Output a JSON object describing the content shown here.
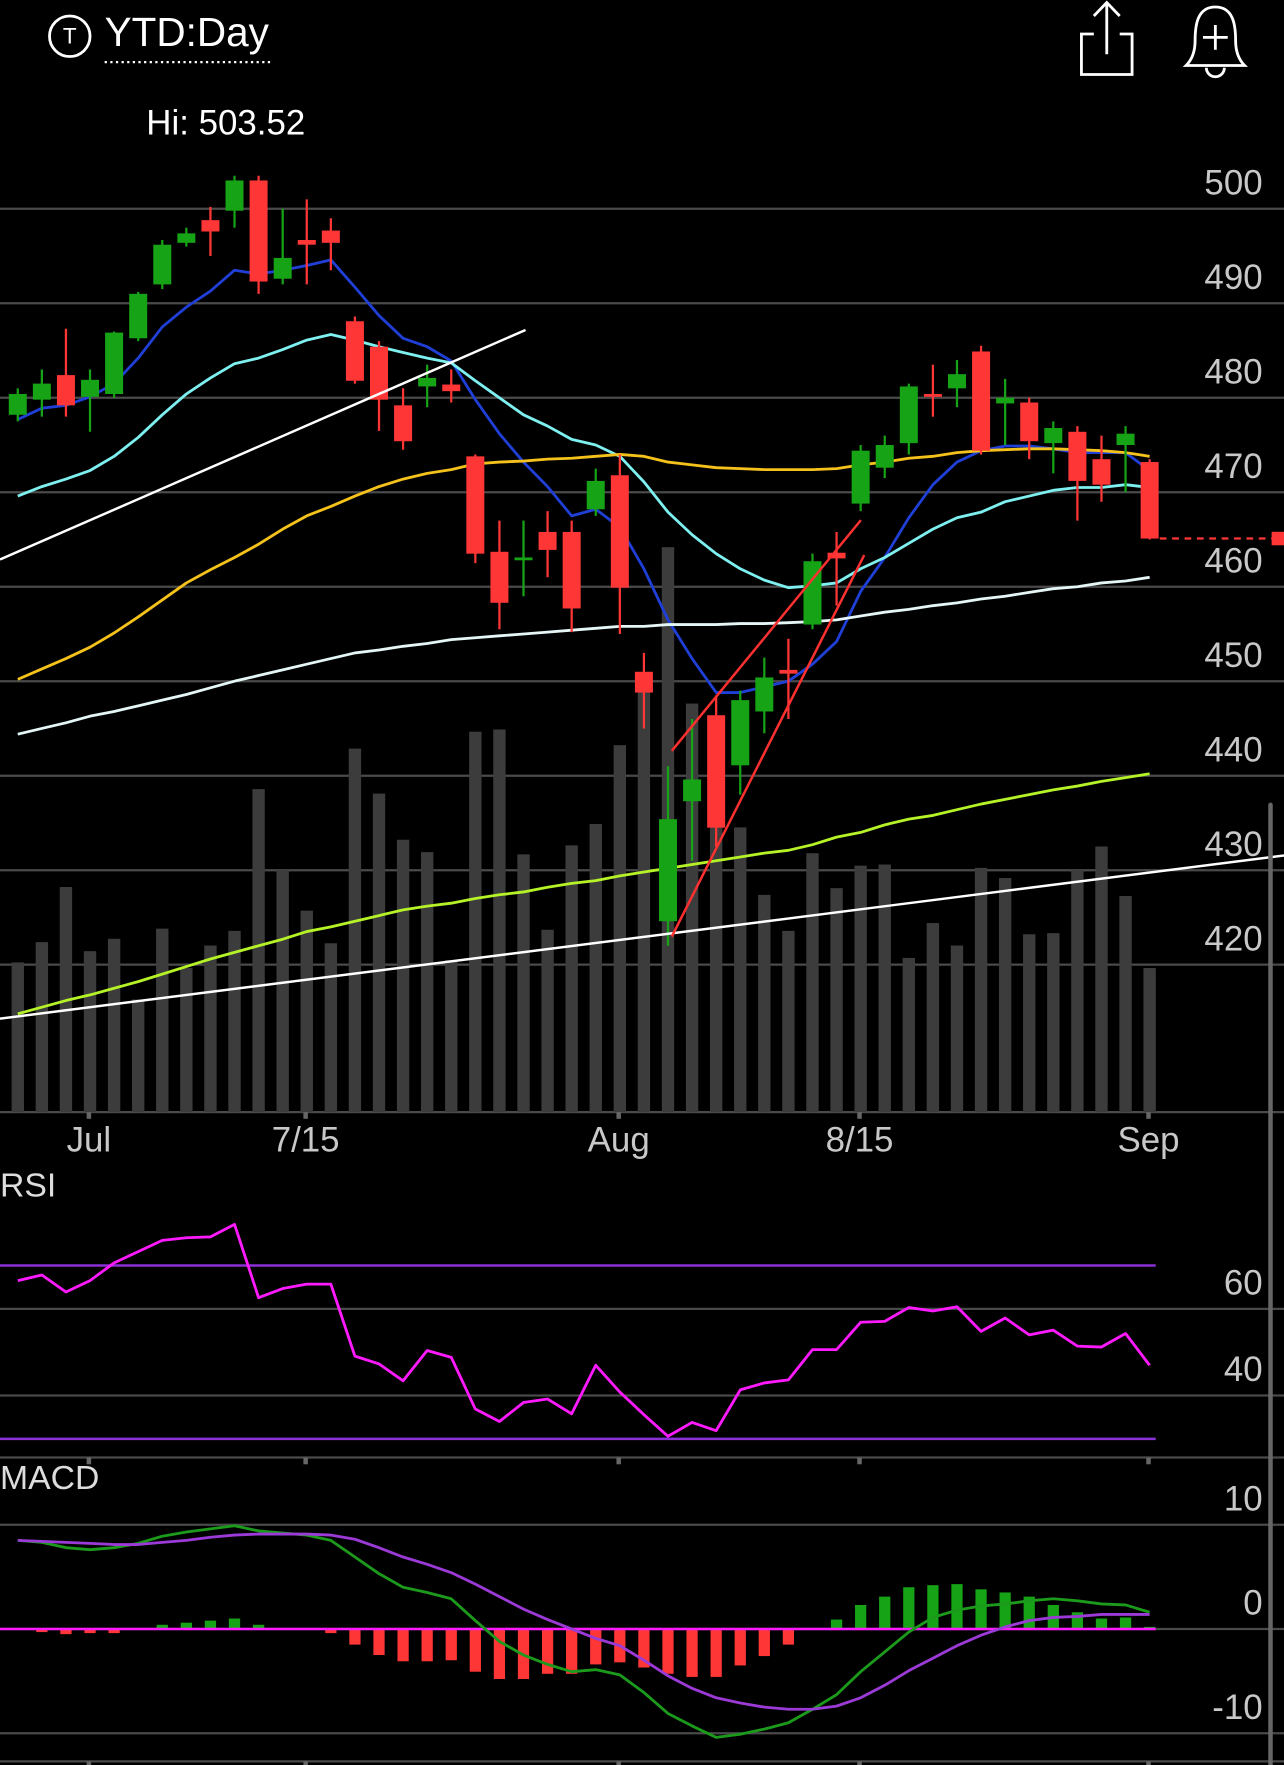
{
  "header": {
    "icon_letter": "T",
    "period": "YTD:Day"
  },
  "chart_data": [
    {
      "type": "candlestick",
      "annotation": "Hi: 503.52",
      "categories": [
        null,
        null,
        null,
        "Jul",
        null,
        null,
        null,
        null,
        null,
        null,
        null,
        null,
        "7/15",
        null,
        null,
        null,
        null,
        null,
        null,
        null,
        null,
        null,
        null,
        null,
        null,
        "Aug",
        null,
        null,
        null,
        null,
        null,
        null,
        null,
        null,
        null,
        "8/15",
        null,
        null,
        null,
        null,
        null,
        null,
        null,
        null,
        null,
        null,
        null,
        "Sep"
      ],
      "open": [
        478.2,
        479.8,
        482.4,
        480.1,
        480.4,
        486.3,
        492,
        496.4,
        498.8,
        499.8,
        503,
        492.6,
        496.7,
        497.7,
        488.1,
        485.4,
        479.2,
        481.2,
        481.4,
        473.8,
        463.7,
        462.8,
        465.8,
        465.8,
        468.2,
        471.8,
        451,
        424.6,
        437.3,
        446.4,
        441.1,
        446.8,
        451.2,
        456,
        463.6,
        468.8,
        472.6,
        475.2,
        480.4,
        481,
        484.9,
        479.4,
        479.5,
        475.2,
        476.4,
        473.5,
        475,
        473.2
      ],
      "high": [
        481,
        483,
        487.3,
        483,
        487,
        491.2,
        496.7,
        498,
        500.2,
        503.5,
        503.5,
        500,
        501,
        499,
        488.6,
        486,
        481,
        483.5,
        483,
        474,
        467,
        467,
        468,
        467,
        472.5,
        474,
        453,
        441,
        446,
        448.5,
        449,
        452.5,
        454.5,
        463.5,
        465.8,
        475,
        476,
        481.5,
        483.5,
        484,
        485.5,
        482,
        480,
        477.5,
        477,
        476,
        477,
        473.5
      ],
      "low": [
        477.5,
        478,
        478,
        476.4,
        480,
        486,
        491.5,
        496,
        495,
        498,
        491,
        492,
        492,
        493.5,
        481.5,
        476.5,
        474.5,
        479,
        479.5,
        462.5,
        455.5,
        459,
        461,
        455.2,
        467.5,
        455,
        445,
        422,
        431,
        432.5,
        438,
        444.5,
        446,
        455.5,
        458,
        468,
        471.5,
        474,
        478,
        479,
        474,
        475,
        473.5,
        472,
        467,
        469,
        470,
        465
      ],
      "close": [
        480.4,
        481.5,
        479.2,
        481.9,
        486.9,
        491,
        496.2,
        497.4,
        497.6,
        503,
        492.3,
        494.8,
        496.2,
        496.4,
        481.8,
        479.8,
        475.4,
        482.1,
        480.7,
        463.5,
        458.3,
        463.1,
        463.9,
        457.7,
        471.2,
        459.9,
        448.8,
        435.4,
        439.6,
        434.5,
        448,
        450.4,
        450.8,
        462.7,
        463,
        474.4,
        475,
        481.2,
        480.1,
        482.5,
        474.4,
        480,
        475.4,
        476.8,
        471.2,
        470.8,
        476.2,
        465.1
      ],
      "volume": [
        133,
        151,
        200,
        143,
        154,
        100,
        163,
        128,
        148,
        161,
        287,
        215,
        179,
        150,
        323,
        283,
        242,
        231,
        135,
        338,
        340,
        229,
        162,
        237,
        256,
        326,
        388,
        502,
        363,
        343,
        253,
        193,
        161,
        230,
        199,
        219,
        220,
        137,
        168,
        148,
        217,
        208,
        158,
        159,
        215,
        236,
        192,
        128
      ],
      "volume_color": "#3c3c3c",
      "up_color": "#16a316",
      "down_color": "#ff3636",
      "series": [
        {
          "color": "#1f3fd6",
          "values": [
            477.7,
            478.9,
            479.2,
            480.1,
            481.5,
            484.2,
            487.5,
            489.6,
            491.3,
            493.5,
            493.1,
            493.5,
            494.0,
            494.6,
            491.7,
            488.7,
            486.3,
            485.4,
            483.9,
            479.8,
            476.2,
            473.2,
            470.6,
            467.5,
            468.2,
            466.3,
            461.9,
            456.5,
            452.4,
            448.8,
            448.8,
            449.4,
            450.0,
            451.8,
            454.2,
            459.5,
            463.1,
            467.3,
            470.8,
            473.2,
            474.4,
            474.9,
            474.9,
            474.6,
            474.2,
            474.2,
            474.2,
            472.3
          ]
        },
        {
          "color": "#7ff0f0",
          "values": [
            469.6,
            470.6,
            471.4,
            472.3,
            473.8,
            475.8,
            478.2,
            480.4,
            482.1,
            483.6,
            484.2,
            485.1,
            486.1,
            486.7,
            486.1,
            485.4,
            484.8,
            484.2,
            483.7,
            481.8,
            480.0,
            478.2,
            477.0,
            475.6,
            475.0,
            473.8,
            471.1,
            467.9,
            465.5,
            463.5,
            461.9,
            460.7,
            459.9,
            460.1,
            460.4,
            461.9,
            463.1,
            464.6,
            466.1,
            467.3,
            467.9,
            469.0,
            469.6,
            470.2,
            470.5,
            470.5,
            470.8,
            470.5
          ]
        },
        {
          "color": "#f5c21b",
          "values": [
            450.2,
            451.3,
            452.4,
            453.6,
            455.1,
            456.8,
            458.6,
            460.4,
            461.8,
            463.1,
            464.5,
            466.1,
            467.5,
            468.5,
            469.6,
            470.6,
            471.4,
            472.0,
            472.4,
            473.0,
            473.2,
            473.3,
            473.5,
            473.6,
            473.8,
            474.0,
            473.8,
            473.2,
            472.9,
            472.6,
            472.5,
            472.4,
            472.4,
            472.4,
            472.5,
            472.9,
            473.2,
            473.6,
            473.8,
            474.2,
            474.4,
            474.5,
            474.6,
            474.6,
            474.5,
            474.4,
            474.2,
            473.8
          ]
        },
        {
          "color": "#e4f6f6",
          "values": [
            444.4,
            445.0,
            445.6,
            446.3,
            446.8,
            447.4,
            448.0,
            448.6,
            449.3,
            450.0,
            450.6,
            451.2,
            451.8,
            452.4,
            453.0,
            453.3,
            453.7,
            454.0,
            454.4,
            454.6,
            454.8,
            455.0,
            455.2,
            455.4,
            455.6,
            455.8,
            455.8,
            456.0,
            456.0,
            456.0,
            456.1,
            456.1,
            456.2,
            456.3,
            456.5,
            456.9,
            457.3,
            457.6,
            458.0,
            458.3,
            458.7,
            459.0,
            459.4,
            459.8,
            460.0,
            460.4,
            460.6,
            461.0
          ]
        },
        {
          "color": "#b5f227",
          "values": [
            414.8,
            415.5,
            416.2,
            416.8,
            417.5,
            418.2,
            419.0,
            419.8,
            420.6,
            421.3,
            422.0,
            422.7,
            423.5,
            424.0,
            424.6,
            425.2,
            425.8,
            426.2,
            426.5,
            427.0,
            427.4,
            427.7,
            428.2,
            428.6,
            428.9,
            429.4,
            429.8,
            430.2,
            430.6,
            431.0,
            431.4,
            431.8,
            432.1,
            432.7,
            433.5,
            434.0,
            434.8,
            435.4,
            435.8,
            436.4,
            437.0,
            437.5,
            438.0,
            438.5,
            438.9,
            439.4,
            439.8,
            440.2
          ]
        }
      ],
      "ylim": [
        404.4,
        505.4
      ],
      "yticks": [
        420,
        430,
        440,
        450,
        460,
        470,
        480,
        490,
        500
      ],
      "grid": true
    },
    {
      "type": "line",
      "title": "RSI",
      "series": [
        {
          "color": "#ff1aff",
          "values": [
            66.5,
            67.8,
            63.9,
            66.5,
            70.6,
            73.2,
            75.8,
            76.4,
            76.6,
            79.5,
            62.6,
            64.7,
            65.7,
            65.7,
            49.1,
            47.3,
            43.4,
            50.4,
            48.8,
            36.9,
            34.0,
            38.4,
            39.2,
            35.8,
            47.0,
            40.8,
            35.6,
            30.6,
            33.8,
            31.9,
            41.3,
            42.9,
            43.6,
            50.6,
            50.6,
            56.9,
            57.1,
            60.3,
            59.5,
            60.5,
            54.8,
            57.9,
            54.0,
            55.1,
            51.4,
            51.2,
            54.3,
            47.0
          ]
        }
      ],
      "levels": [
        70,
        30
      ],
      "level_color": "#8b2fd6",
      "ylim": [
        25.7,
        91.9
      ],
      "yticks": [
        40,
        60
      ],
      "grid": true
    },
    {
      "type": "macd",
      "title": "MACD",
      "histogram": [
        0,
        -0.3,
        -0.5,
        -0.4,
        -0.4,
        0,
        0.4,
        0.6,
        0.8,
        1.0,
        0.4,
        0,
        0,
        -0.4,
        -1.5,
        -2.5,
        -3.1,
        -3.1,
        -3.0,
        -4.1,
        -4.8,
        -4.8,
        -4.3,
        -4.3,
        -3.4,
        -3.2,
        -3.7,
        -4.3,
        -4.6,
        -4.6,
        -3.5,
        -2.6,
        -1.5,
        0,
        0.9,
        2.3,
        3.1,
        4.0,
        4.2,
        4.3,
        3.8,
        3.5,
        3.1,
        2.3,
        1.6,
        1.0,
        1.1,
        0.2
      ],
      "up_color": "#16a316",
      "down_color": "#ff3636",
      "zero_line_color": "#ff1aff",
      "series": [
        {
          "color": "#1c9a1c",
          "values": [
            8.5,
            8.3,
            7.8,
            7.6,
            7.8,
            8.2,
            8.9,
            9.3,
            9.6,
            9.9,
            9.4,
            9.2,
            9.0,
            8.5,
            6.9,
            5.3,
            4.0,
            3.5,
            2.9,
            0.8,
            -1.2,
            -2.5,
            -3.4,
            -4.1,
            -3.9,
            -4.4,
            -6.1,
            -8.1,
            -9.3,
            -10.4,
            -10.1,
            -9.6,
            -9.0,
            -7.7,
            -6.3,
            -4.1,
            -2.2,
            -0.3,
            1.1,
            1.8,
            2.2,
            2.4,
            2.7,
            2.9,
            2.7,
            2.4,
            2.3,
            1.6
          ]
        },
        {
          "color": "#9b3ad6",
          "values": [
            8.5,
            8.4,
            8.3,
            8.2,
            8.1,
            8.1,
            8.3,
            8.5,
            8.8,
            9.0,
            9.1,
            9.1,
            9.1,
            9.0,
            8.6,
            7.8,
            6.9,
            6.2,
            5.4,
            4.3,
            3.1,
            1.9,
            0.9,
            0,
            -0.9,
            -1.6,
            -3.0,
            -4.5,
            -5.7,
            -6.6,
            -7.1,
            -7.5,
            -7.7,
            -7.7,
            -7.4,
            -6.6,
            -5.4,
            -4.0,
            -2.8,
            -1.6,
            -0.6,
            0.2,
            0.8,
            1.1,
            1.2,
            1.4,
            1.4,
            1.4
          ]
        }
      ],
      "ylim": [
        -12.7,
        15.9
      ],
      "yticks": [
        -10,
        0,
        10
      ],
      "grid": true
    }
  ]
}
